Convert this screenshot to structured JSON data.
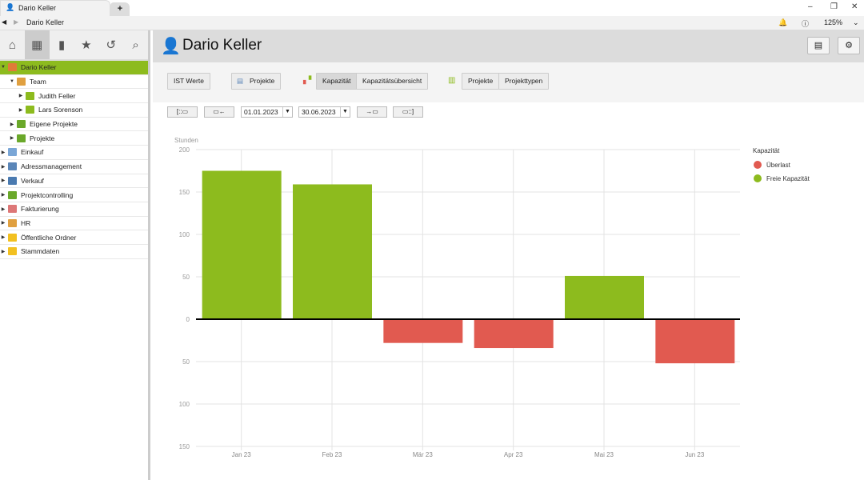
{
  "window": {
    "tab_title": "Dario Keller",
    "new_tab": "+",
    "zoom": "125%",
    "breadcrumb": "Dario Keller"
  },
  "sidebar": {
    "items": [
      {
        "label": "Dario Keller",
        "level": 0,
        "arrow": "▼",
        "color": "#e07b39",
        "selected": true
      },
      {
        "label": "Team",
        "level": 1,
        "arrow": "▼",
        "color": "#e0a040"
      },
      {
        "label": "Judith Feller",
        "level": 2,
        "arrow": "▶",
        "color": "#8dbb1e"
      },
      {
        "label": "Lars Sorenson",
        "level": 2,
        "arrow": "▶",
        "color": "#8dbb1e"
      },
      {
        "label": "Eigene Projekte",
        "level": 1,
        "arrow": "▶",
        "color": "#6aa82a"
      },
      {
        "label": "Projekte",
        "level": 1,
        "arrow": "▶",
        "color": "#6aa82a"
      },
      {
        "label": "Einkauf",
        "level": 0,
        "arrow": "▶",
        "color": "#7aa6d6"
      },
      {
        "label": "Adressmanagement",
        "level": 0,
        "arrow": "▶",
        "color": "#5b86b8"
      },
      {
        "label": "Verkauf",
        "level": 0,
        "arrow": "▶",
        "color": "#4a7ab0"
      },
      {
        "label": "Projektcontrolling",
        "level": 0,
        "arrow": "▶",
        "color": "#6aa82a"
      },
      {
        "label": "Fakturierung",
        "level": 0,
        "arrow": "▶",
        "color": "#d77"
      },
      {
        "label": "HR",
        "level": 0,
        "arrow": "▶",
        "color": "#e0a040"
      },
      {
        "label": "Öffentliche Ordner",
        "level": 0,
        "arrow": "▶",
        "color": "#f2c020"
      },
      {
        "label": "Stammdaten",
        "level": 0,
        "arrow": "▶",
        "color": "#f2c020"
      }
    ]
  },
  "header": {
    "title": "Dario Keller"
  },
  "toolbar": {
    "ist": "IST Werte",
    "projekte": "Projekte",
    "kapazitaet": "Kapazität",
    "kapazitaetsuebersicht": "Kapazitätsübersicht",
    "projekte2": "Projekte",
    "projekttypen": "Projekttypen"
  },
  "dates": {
    "from": "01.01.2023",
    "to": "30.06.2023"
  },
  "chart_data": {
    "type": "bar",
    "ylabel": "Stunden",
    "categories": [
      "Jan 23",
      "Feb 23",
      "Mär 23",
      "Apr 23",
      "Mai 23",
      "Jun 23"
    ],
    "values": [
      175,
      159,
      -28,
      -34,
      51,
      -52
    ],
    "ylim": [
      -150,
      200
    ],
    "yticks": [
      {
        "v": 200,
        "l": "200"
      },
      {
        "v": 150,
        "l": "150"
      },
      {
        "v": 100,
        "l": "100"
      },
      {
        "v": 50,
        "l": "50"
      },
      {
        "v": 0,
        "l": "0"
      },
      {
        "v": -50,
        "l": "50"
      },
      {
        "v": -100,
        "l": "100"
      },
      {
        "v": -150,
        "l": "150"
      }
    ],
    "legend_title": "Kapazität",
    "legend": [
      {
        "name": "Überlast",
        "color": "#e15a50"
      },
      {
        "name": "Freie Kapazität",
        "color": "#8dbb1e"
      }
    ],
    "grid": true,
    "legend_position": "right"
  }
}
